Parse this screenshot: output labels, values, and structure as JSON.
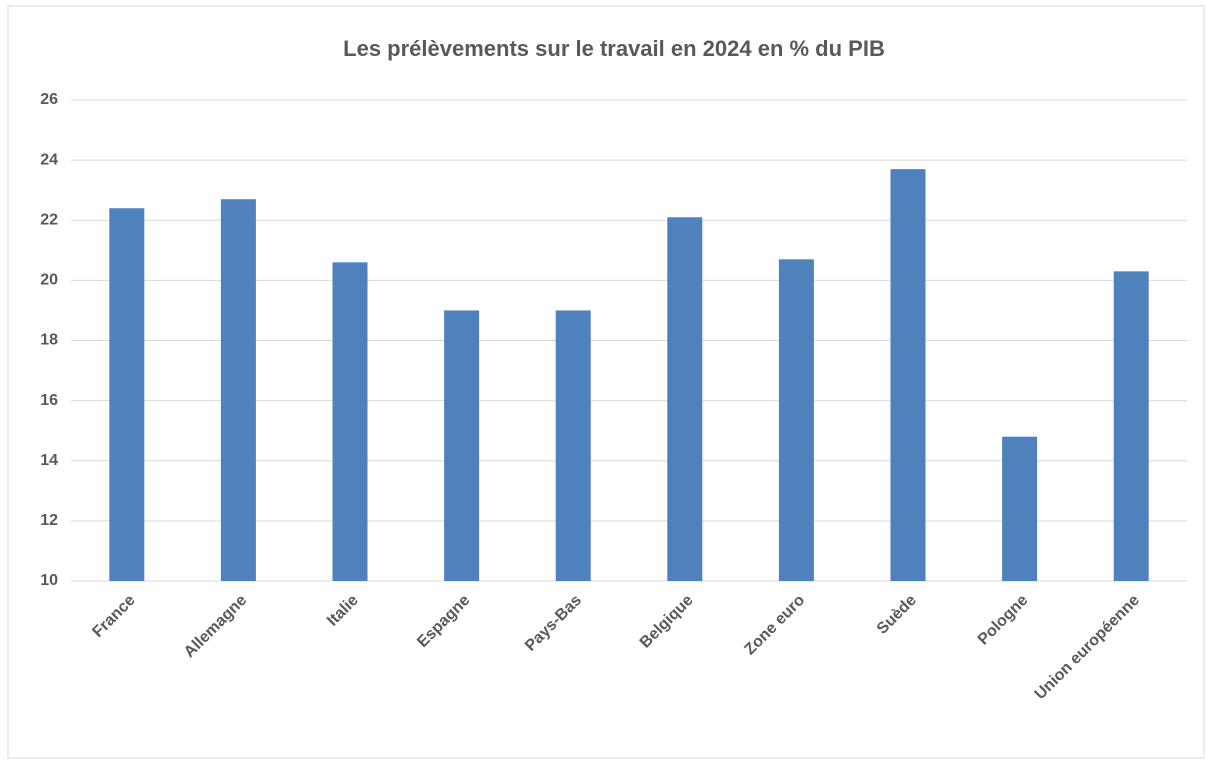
{
  "chart_data": {
    "type": "bar",
    "title": "Les prélèvements sur le travail en 2024 en % du PIB",
    "categories": [
      "France",
      "Allemagne",
      "Italie",
      "Espagne",
      "Pays-Bas",
      "Belgique",
      "Zone euro",
      "Suède",
      "Pologne",
      "Union européenne"
    ],
    "values": [
      22.4,
      22.7,
      20.6,
      19.0,
      19.0,
      22.1,
      20.7,
      23.7,
      14.8,
      20.3
    ],
    "color": "#4f81bd",
    "ylim": [
      10,
      26
    ],
    "yticks": [
      10,
      12,
      14,
      16,
      18,
      20,
      22,
      24,
      26
    ],
    "grid": true
  }
}
